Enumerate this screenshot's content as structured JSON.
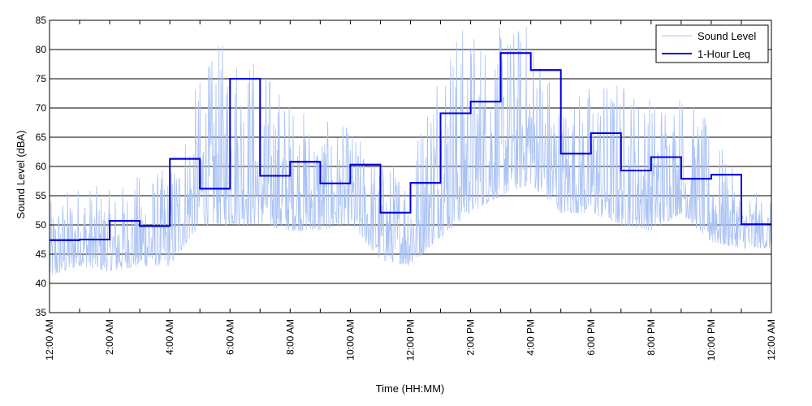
{
  "chart_data": {
    "type": "line",
    "xlabel": "Time (HH:MM)",
    "ylabel": "Sound Level (dBA)",
    "ylim": [
      35,
      85
    ],
    "xlim": [
      0,
      24
    ],
    "y_ticks": [
      35,
      40,
      45,
      50,
      55,
      60,
      65,
      70,
      75,
      80,
      85
    ],
    "x_tick_hours": [
      0,
      2,
      4,
      6,
      8,
      10,
      12,
      14,
      16,
      18,
      20,
      22,
      24
    ],
    "x_tick_labels": [
      "12:00 AM",
      "2:00 AM",
      "4:00 AM",
      "6:00 AM",
      "8:00 AM",
      "10:00 AM",
      "12:00 PM",
      "2:00 PM",
      "4:00 PM",
      "6:00 PM",
      "8:00 PM",
      "10:00 PM",
      "12:00 AM"
    ],
    "grid": "horizontal",
    "legend_position": "top-right",
    "colors": {
      "sound_level": "#a9c1f5",
      "leq": "#0000dd",
      "grid": "#000000"
    },
    "series": [
      {
        "name": "Sound Level",
        "kind": "trace",
        "hours": [
          0,
          1,
          2,
          3,
          4,
          5,
          6,
          7,
          8,
          9,
          10,
          11,
          12,
          13,
          14,
          15,
          16,
          17,
          18,
          19,
          20,
          21,
          22,
          23,
          24
        ],
        "approx_range_low": [
          41,
          43,
          42,
          43,
          43,
          50,
          50,
          50,
          49,
          49,
          50,
          44,
          43,
          48,
          52,
          55,
          57,
          52,
          52,
          50,
          49,
          52,
          47,
          46,
          46
        ],
        "approx_range_high": [
          54,
          58,
          56,
          59,
          60,
          76,
          84,
          79,
          72,
          68,
          67,
          61,
          62,
          85,
          85,
          84,
          86,
          72,
          75,
          76,
          73,
          74,
          67,
          57,
          54
        ]
      },
      {
        "name": "1-Hour Leq",
        "kind": "step",
        "hour_start": [
          0,
          1,
          2,
          3,
          4,
          5,
          6,
          7,
          8,
          9,
          10,
          11,
          12,
          13,
          14,
          15,
          16,
          17,
          18,
          19,
          20,
          21,
          22,
          23
        ],
        "values": [
          47.4,
          47.5,
          50.7,
          49.8,
          61.3,
          56.2,
          75.0,
          58.4,
          60.8,
          57.1,
          60.3,
          52.1,
          57.2,
          69.1,
          71.1,
          79.4,
          76.5,
          62.2,
          65.7,
          59.3,
          61.6,
          57.9,
          58.6,
          50.1
        ]
      }
    ]
  }
}
